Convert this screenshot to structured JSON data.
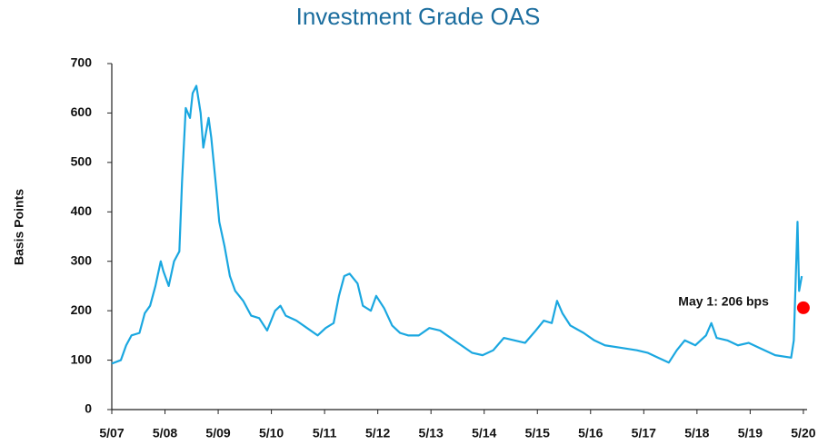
{
  "chart_data": {
    "type": "line",
    "title": "Investment Grade OAS",
    "y_label": "Basis Points",
    "annotation": "May 1: 206 bps",
    "marker": {
      "x": 2020.33,
      "value": 206,
      "color": "#ff0000"
    },
    "xlim": [
      2007.33,
      2020.4
    ],
    "xticks": [
      {
        "value": 2007.33,
        "label": "5/07"
      },
      {
        "value": 2008.33,
        "label": "5/08"
      },
      {
        "value": 2009.33,
        "label": "5/09"
      },
      {
        "value": 2010.33,
        "label": "5/10"
      },
      {
        "value": 2011.33,
        "label": "5/11"
      },
      {
        "value": 2012.33,
        "label": "5/12"
      },
      {
        "value": 2013.33,
        "label": "5/13"
      },
      {
        "value": 2014.33,
        "label": "5/14"
      },
      {
        "value": 2015.33,
        "label": "5/15"
      },
      {
        "value": 2016.33,
        "label": "5/16"
      },
      {
        "value": 2017.33,
        "label": "5/17"
      },
      {
        "value": 2018.33,
        "label": "5/18"
      },
      {
        "value": 2019.33,
        "label": "5/19"
      },
      {
        "value": 2020.33,
        "label": "5/20"
      }
    ],
    "ylim": [
      0,
      700
    ],
    "yticks": [
      0,
      100,
      200,
      300,
      400,
      500,
      600,
      700
    ],
    "x": [
      2007.33,
      2007.5,
      2007.6,
      2007.7,
      2007.85,
      2007.95,
      2008.05,
      2008.15,
      2008.25,
      2008.3,
      2008.4,
      2008.5,
      2008.6,
      2008.65,
      2008.72,
      2008.8,
      2008.85,
      2008.92,
      2009.0,
      2009.05,
      2009.15,
      2009.2,
      2009.3,
      2009.35,
      2009.45,
      2009.55,
      2009.65,
      2009.8,
      2009.95,
      2010.1,
      2010.25,
      2010.4,
      2010.5,
      2010.6,
      2010.8,
      2011.0,
      2011.2,
      2011.35,
      2011.5,
      2011.6,
      2011.7,
      2011.8,
      2011.95,
      2012.05,
      2012.2,
      2012.3,
      2012.45,
      2012.6,
      2012.75,
      2012.9,
      2013.1,
      2013.3,
      2013.5,
      2013.7,
      2013.9,
      2014.1,
      2014.3,
      2014.5,
      2014.7,
      2014.9,
      2015.1,
      2015.3,
      2015.45,
      2015.6,
      2015.7,
      2015.8,
      2015.95,
      2016.2,
      2016.4,
      2016.6,
      2016.9,
      2017.2,
      2017.4,
      2017.6,
      2017.8,
      2017.95,
      2018.1,
      2018.3,
      2018.5,
      2018.6,
      2018.7,
      2018.9,
      2019.1,
      2019.3,
      2019.5,
      2019.8,
      2020.1,
      2020.15,
      2020.22,
      2020.25,
      2020.3
    ],
    "series": [
      {
        "name": "Investment Grade OAS",
        "color": "#1aa7e0",
        "values": [
          93,
          100,
          130,
          150,
          155,
          195,
          210,
          250,
          300,
          280,
          250,
          300,
          320,
          460,
          610,
          590,
          640,
          655,
          600,
          530,
          590,
          550,
          440,
          380,
          330,
          270,
          240,
          220,
          190,
          185,
          160,
          200,
          210,
          190,
          180,
          165,
          150,
          165,
          175,
          230,
          270,
          275,
          255,
          210,
          200,
          230,
          205,
          170,
          155,
          150,
          150,
          165,
          160,
          145,
          130,
          115,
          110,
          120,
          145,
          140,
          135,
          160,
          180,
          175,
          220,
          195,
          170,
          155,
          140,
          130,
          125,
          120,
          115,
          105,
          95,
          120,
          140,
          130,
          150,
          175,
          145,
          140,
          130,
          135,
          125,
          110,
          105,
          140,
          380,
          240,
          270
        ]
      }
    ]
  }
}
